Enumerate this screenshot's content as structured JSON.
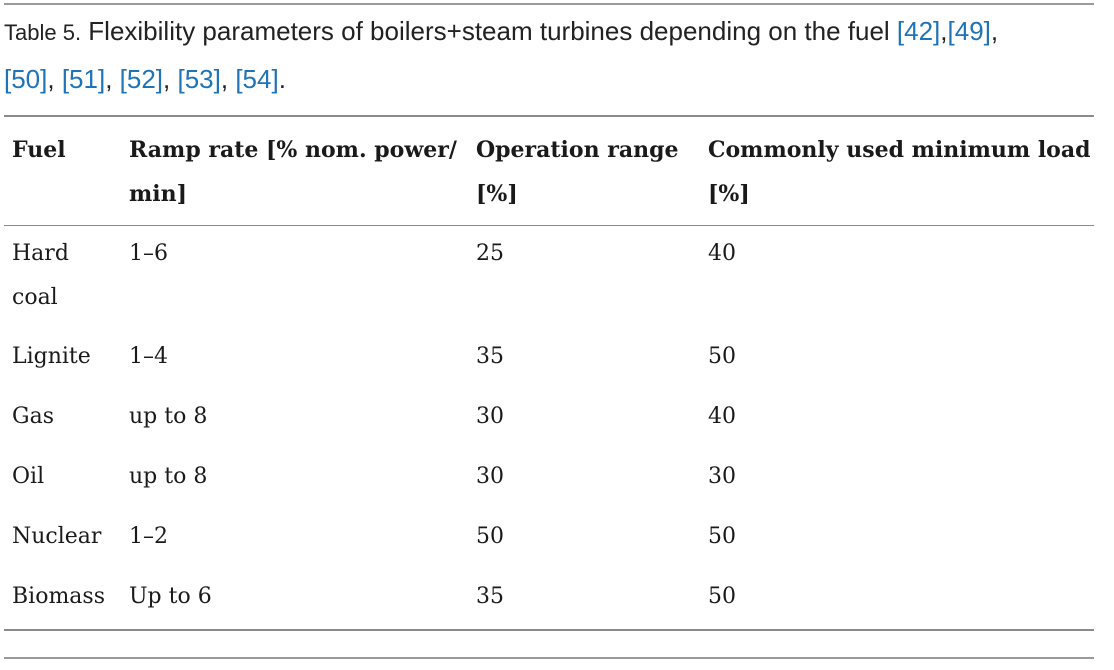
{
  "caption": {
    "label": "Table 5.",
    "text": " Flexibility parameters of boilers+steam turbines depending on the fuel ",
    "refs": [
      "[42]",
      "[49]",
      "[50]",
      "[51]",
      "[52]",
      "[53]",
      "[54]"
    ]
  },
  "table": {
    "headers": {
      "fuel_line1": "Fuel",
      "ramp_line1": "Ramp rate [% nom. power/",
      "ramp_line2": "min]",
      "range_line1": "Operation range",
      "range_line2": "[%]",
      "minload_line1": "Commonly used minimum load",
      "minload_line2": "[%]"
    },
    "rows": [
      {
        "fuel_line1": "Hard",
        "fuel_line2": "coal",
        "ramp": "1–6",
        "range": "25",
        "min_load": "40"
      },
      {
        "fuel": "Lignite",
        "ramp": "1–4",
        "range": "35",
        "min_load": "50"
      },
      {
        "fuel": "Gas",
        "ramp": "up to 8",
        "range": "30",
        "min_load": "40"
      },
      {
        "fuel": "Oil",
        "ramp": "up to 8",
        "range": "30",
        "min_load": "30"
      },
      {
        "fuel": "Nuclear",
        "ramp": "1–2",
        "range": "50",
        "min_load": "50"
      },
      {
        "fuel": "Biomass",
        "ramp": "Up to 6",
        "range": "35",
        "min_load": "50"
      }
    ]
  },
  "colors": {
    "link": "#1f73b7",
    "rule": "#8a8a8a",
    "text": "#1a1a1a"
  }
}
